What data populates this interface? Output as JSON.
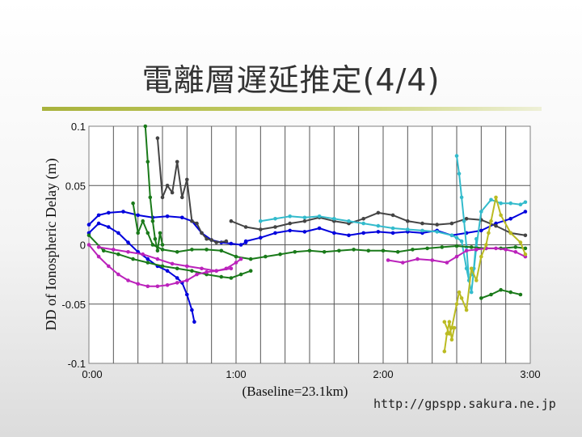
{
  "slide": {
    "title": "電離層遅延推定(4/4)",
    "footer_url": "http://gpspp.sakura.ne.jp",
    "accent_color": "#a8b23c"
  },
  "chart_data": {
    "type": "line",
    "title": "",
    "ylabel": "DD of Ionospheric Delay (m)",
    "xlabel": "(Baseline=23.1km)",
    "xlim": [
      0,
      180
    ],
    "ylim": [
      -0.1,
      0.1
    ],
    "x_ticks": [
      {
        "value": 0,
        "label": "0:00"
      },
      {
        "value": 60,
        "label": "1:00"
      },
      {
        "value": 120,
        "label": "2:00"
      },
      {
        "value": 180,
        "label": "3:00"
      }
    ],
    "y_ticks": [
      {
        "value": 0.1,
        "label": "0.1"
      },
      {
        "value": 0.05,
        "label": "0.05"
      },
      {
        "value": 0,
        "label": "0"
      },
      {
        "value": -0.05,
        "label": "-0.05"
      },
      {
        "value": -0.1,
        "label": "-0.1"
      }
    ],
    "grid": true,
    "series": [
      {
        "color": "#0000dd",
        "points": [
          [
            0,
            0.017
          ],
          [
            4,
            0.025
          ],
          [
            8,
            0.027
          ],
          [
            14,
            0.028
          ],
          [
            20,
            0.025
          ],
          [
            26,
            0.023
          ],
          [
            32,
            0.024
          ],
          [
            38,
            0.023
          ],
          [
            42,
            0.02
          ],
          [
            46,
            0.01
          ],
          [
            50,
            0.004
          ],
          [
            54,
            0.002
          ],
          [
            58,
            0.001
          ],
          [
            62,
            0.0
          ],
          [
            64,
            0.002
          ]
        ]
      },
      {
        "color": "#0000dd",
        "points": [
          [
            0,
            0.01
          ],
          [
            4,
            0.018
          ],
          [
            8,
            0.015
          ],
          [
            12,
            0.01
          ],
          [
            16,
            0.002
          ],
          [
            20,
            -0.006
          ],
          [
            24,
            -0.012
          ],
          [
            28,
            -0.018
          ],
          [
            32,
            -0.022
          ],
          [
            36,
            -0.028
          ],
          [
            38,
            -0.032
          ],
          [
            40,
            -0.042
          ],
          [
            42,
            -0.055
          ],
          [
            43,
            -0.065
          ]
        ]
      },
      {
        "color": "#0000dd",
        "points": [
          [
            64,
            0.003
          ],
          [
            70,
            0.006
          ],
          [
            76,
            0.01
          ],
          [
            82,
            0.012
          ],
          [
            88,
            0.011
          ],
          [
            94,
            0.014
          ],
          [
            100,
            0.01
          ],
          [
            106,
            0.008
          ],
          [
            112,
            0.01
          ],
          [
            118,
            0.011
          ],
          [
            124,
            0.01
          ],
          [
            130,
            0.011
          ],
          [
            136,
            0.01
          ],
          [
            142,
            0.012
          ],
          [
            148,
            0.008
          ],
          [
            154,
            0.01
          ],
          [
            160,
            0.012
          ],
          [
            166,
            0.018
          ],
          [
            172,
            0.022
          ],
          [
            178,
            0.028
          ]
        ]
      },
      {
        "color": "#444444",
        "points": [
          [
            58,
            0.02
          ],
          [
            64,
            0.015
          ],
          [
            70,
            0.013
          ],
          [
            76,
            0.015
          ],
          [
            82,
            0.018
          ],
          [
            88,
            0.02
          ],
          [
            94,
            0.023
          ],
          [
            100,
            0.02
          ],
          [
            106,
            0.018
          ],
          [
            112,
            0.022
          ],
          [
            118,
            0.027
          ],
          [
            124,
            0.025
          ],
          [
            130,
            0.02
          ],
          [
            136,
            0.018
          ],
          [
            142,
            0.017
          ],
          [
            148,
            0.018
          ],
          [
            154,
            0.022
          ],
          [
            160,
            0.021
          ],
          [
            166,
            0.016
          ],
          [
            172,
            0.01
          ],
          [
            178,
            0.008
          ]
        ]
      },
      {
        "color": "#444444",
        "points": [
          [
            28,
            0.09
          ],
          [
            30,
            0.04
          ],
          [
            32,
            0.05
          ],
          [
            34,
            0.044
          ],
          [
            36,
            0.07
          ],
          [
            38,
            0.04
          ],
          [
            40,
            0.055
          ],
          [
            42,
            0.02
          ],
          [
            44,
            0.018
          ],
          [
            46,
            0.01
          ],
          [
            48,
            0.005
          ],
          [
            50,
            0.004
          ],
          [
            52,
            0.002
          ],
          [
            56,
            0.003
          ]
        ]
      },
      {
        "color": "#33bbcc",
        "points": [
          [
            70,
            0.02
          ],
          [
            76,
            0.022
          ],
          [
            82,
            0.024
          ],
          [
            88,
            0.023
          ],
          [
            94,
            0.024
          ],
          [
            100,
            0.022
          ],
          [
            106,
            0.02
          ],
          [
            112,
            0.018
          ],
          [
            118,
            0.016
          ],
          [
            124,
            0.014
          ],
          [
            130,
            0.013
          ],
          [
            136,
            0.012
          ],
          [
            142,
            0.011
          ],
          [
            148,
            0.008
          ],
          [
            150,
            0.006
          ],
          [
            152,
            0.003
          ],
          [
            154,
            -0.02
          ],
          [
            156,
            -0.04
          ],
          [
            158,
            -0.002
          ],
          [
            160,
            0.028
          ],
          [
            164,
            0.038
          ],
          [
            168,
            0.035
          ],
          [
            172,
            0.035
          ],
          [
            176,
            0.034
          ],
          [
            178,
            0.036
          ]
        ]
      },
      {
        "color": "#33bbcc",
        "points": [
          [
            150,
            0.075
          ],
          [
            151,
            0.06
          ],
          [
            152,
            0.04
          ],
          [
            153,
            0.02
          ],
          [
            154,
            -0.002
          ],
          [
            155,
            -0.03
          ],
          [
            156,
            -0.025
          ],
          [
            157,
            -0.02
          ],
          [
            158,
            0.005
          ]
        ]
      },
      {
        "color": "#1a7a1a",
        "points": [
          [
            18,
            0.035
          ],
          [
            20,
            0.01
          ],
          [
            22,
            0.02
          ],
          [
            24,
            0.01
          ],
          [
            26,
            0.0
          ],
          [
            30,
            -0.004
          ],
          [
            36,
            -0.006
          ],
          [
            42,
            -0.004
          ],
          [
            48,
            -0.004
          ],
          [
            54,
            -0.005
          ],
          [
            60,
            -0.01
          ],
          [
            66,
            -0.012
          ],
          [
            72,
            -0.01
          ],
          [
            78,
            -0.008
          ],
          [
            84,
            -0.006
          ],
          [
            90,
            -0.005
          ],
          [
            96,
            -0.006
          ],
          [
            102,
            -0.005
          ],
          [
            108,
            -0.004
          ],
          [
            114,
            -0.005
          ],
          [
            120,
            -0.005
          ],
          [
            126,
            -0.006
          ],
          [
            132,
            -0.004
          ],
          [
            138,
            -0.003
          ],
          [
            144,
            -0.002
          ],
          [
            150,
            -0.001
          ],
          [
            156,
            -0.002
          ],
          [
            162,
            -0.003
          ],
          [
            168,
            -0.003
          ],
          [
            174,
            -0.002
          ],
          [
            178,
            -0.003
          ]
        ]
      },
      {
        "color": "#1a7a1a",
        "points": [
          [
            0,
            0.008
          ],
          [
            6,
            -0.005
          ],
          [
            12,
            -0.008
          ],
          [
            18,
            -0.012
          ],
          [
            24,
            -0.015
          ],
          [
            30,
            -0.018
          ],
          [
            36,
            -0.02
          ],
          [
            42,
            -0.022
          ],
          [
            48,
            -0.025
          ],
          [
            54,
            -0.027
          ],
          [
            58,
            -0.028
          ],
          [
            62,
            -0.025
          ],
          [
            66,
            -0.022
          ]
        ]
      },
      {
        "color": "#1a7a1a",
        "points": [
          [
            23,
            0.1
          ],
          [
            24,
            0.07
          ],
          [
            25,
            0.04
          ],
          [
            26,
            0.02
          ],
          [
            27,
            0.005
          ],
          [
            28,
            -0.005
          ],
          [
            29,
            0.01
          ],
          [
            30,
            0.0
          ]
        ]
      },
      {
        "color": "#1a7a1a",
        "points": [
          [
            160,
            -0.045
          ],
          [
            164,
            -0.042
          ],
          [
            168,
            -0.038
          ],
          [
            172,
            -0.04
          ],
          [
            176,
            -0.042
          ]
        ]
      },
      {
        "color": "#bb22bb",
        "points": [
          [
            0,
            0.0
          ],
          [
            4,
            -0.01
          ],
          [
            8,
            -0.018
          ],
          [
            12,
            -0.025
          ],
          [
            16,
            -0.03
          ],
          [
            20,
            -0.033
          ],
          [
            24,
            -0.035
          ],
          [
            28,
            -0.035
          ],
          [
            32,
            -0.034
          ],
          [
            36,
            -0.032
          ],
          [
            40,
            -0.03
          ],
          [
            44,
            -0.025
          ],
          [
            48,
            -0.023
          ],
          [
            52,
            -0.022
          ],
          [
            56,
            -0.02
          ],
          [
            60,
            -0.015
          ],
          [
            62,
            -0.012
          ]
        ]
      },
      {
        "color": "#bb22bb",
        "points": [
          [
            4,
            -0.002
          ],
          [
            10,
            -0.004
          ],
          [
            16,
            -0.006
          ],
          [
            22,
            -0.008
          ],
          [
            28,
            -0.012
          ],
          [
            34,
            -0.016
          ],
          [
            40,
            -0.018
          ],
          [
            46,
            -0.02
          ],
          [
            52,
            -0.022
          ],
          [
            58,
            -0.02
          ]
        ]
      },
      {
        "color": "#bb22bb",
        "points": [
          [
            122,
            -0.013
          ],
          [
            128,
            -0.015
          ],
          [
            134,
            -0.012
          ],
          [
            140,
            -0.013
          ],
          [
            146,
            -0.015
          ],
          [
            150,
            -0.01
          ],
          [
            154,
            -0.005
          ],
          [
            158,
            -0.004
          ],
          [
            162,
            -0.003
          ],
          [
            166,
            -0.003
          ],
          [
            170,
            -0.004
          ],
          [
            174,
            -0.006
          ],
          [
            178,
            -0.01
          ]
        ]
      },
      {
        "color": "#bbbb22",
        "points": [
          [
            145,
            -0.065
          ],
          [
            147,
            -0.075
          ],
          [
            148,
            -0.07
          ],
          [
            150,
            -0.05
          ],
          [
            151,
            -0.04
          ],
          [
            152,
            -0.045
          ],
          [
            154,
            -0.055
          ],
          [
            156,
            -0.02
          ],
          [
            158,
            -0.03
          ],
          [
            160,
            -0.01
          ],
          [
            162,
            0.0
          ],
          [
            163,
            0.01
          ],
          [
            164,
            0.02
          ],
          [
            166,
            0.04
          ],
          [
            168,
            0.025
          ],
          [
            172,
            0.01
          ],
          [
            176,
            0.002
          ],
          [
            178,
            -0.008
          ]
        ]
      },
      {
        "color": "#bbbb22",
        "points": [
          [
            145,
            -0.09
          ],
          [
            146,
            -0.075
          ],
          [
            147,
            -0.065
          ],
          [
            148,
            -0.08
          ],
          [
            149,
            -0.07
          ]
        ]
      }
    ]
  }
}
